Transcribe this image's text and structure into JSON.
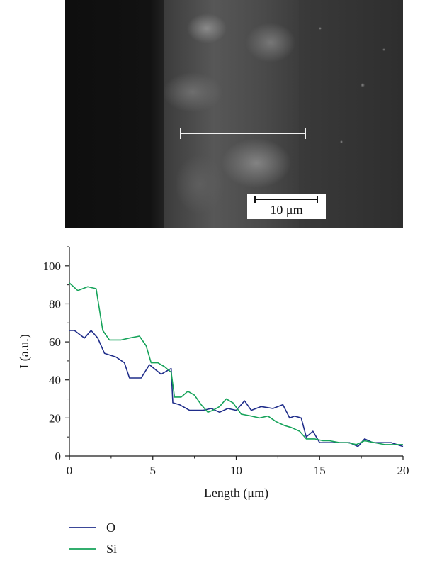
{
  "micrograph": {
    "scale_bar_label": "10 μm"
  },
  "chart_data": {
    "type": "line",
    "title": "",
    "xlabel": "Length (μm)",
    "ylabel": "I (a.u.)",
    "xlim": [
      0,
      20
    ],
    "ylim": [
      0,
      110
    ],
    "xticks": [
      0,
      5,
      10,
      15,
      20
    ],
    "yticks": [
      0,
      20,
      40,
      60,
      80,
      100
    ],
    "grid": false,
    "legend_placement": "bottom-left",
    "series": [
      {
        "name": "O",
        "color": "#1f2d8a",
        "x": [
          0,
          0.3,
          0.9,
          1.3,
          1.7,
          2.1,
          2.8,
          3.3,
          3.6,
          4.3,
          4.8,
          5.5,
          6.1,
          6.2,
          6.6,
          7.2,
          7.6,
          8.0,
          8.5,
          9.0,
          9.5,
          10.0,
          10.5,
          10.9,
          11.5,
          12.2,
          12.8,
          13.2,
          13.5,
          13.9,
          14.2,
          14.6,
          15.0,
          15.4,
          16.0,
          16.8,
          17.3,
          17.7,
          18.2,
          18.8,
          19.3,
          20.0
        ],
        "y": [
          66,
          66,
          62,
          66,
          62,
          54,
          52,
          49,
          41,
          41,
          48,
          43,
          46,
          28,
          27,
          24,
          24,
          24,
          25,
          23,
          25,
          24,
          29,
          24,
          26,
          25,
          27,
          20,
          21,
          20,
          10,
          13,
          7,
          7,
          7,
          7,
          5,
          9,
          7,
          7,
          7,
          5
        ]
      },
      {
        "name": "Si",
        "color": "#16a35a",
        "x": [
          0,
          0.5,
          1.1,
          1.6,
          2.0,
          2.4,
          3.1,
          3.6,
          4.2,
          4.6,
          4.9,
          5.3,
          5.7,
          6.1,
          6.3,
          6.7,
          7.1,
          7.5,
          7.9,
          8.3,
          8.6,
          9.0,
          9.4,
          9.8,
          10.3,
          10.9,
          11.4,
          11.9,
          12.4,
          12.9,
          13.3,
          13.8,
          14.2,
          14.7,
          15.2,
          15.6,
          16.2,
          16.7,
          17.2,
          17.7,
          18.3,
          18.9,
          19.4,
          20.0
        ],
        "y": [
          91,
          87,
          89,
          88,
          66,
          61,
          61,
          62,
          63,
          58,
          49,
          49,
          47,
          44,
          31,
          31,
          34,
          32,
          27,
          23,
          24,
          26,
          30,
          28,
          22,
          21,
          20,
          21,
          18,
          16,
          15,
          13,
          9,
          9,
          8,
          8,
          7,
          7,
          6,
          8,
          7,
          6,
          6,
          6
        ]
      }
    ]
  }
}
